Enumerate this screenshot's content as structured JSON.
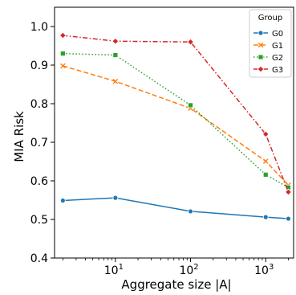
{
  "chart_data": {
    "type": "line",
    "xlabel": "Aggregate size |A|",
    "ylabel": "MIA Risk",
    "xscale": "log",
    "xlim": [
      1.55,
      2350
    ],
    "ylim": [
      0.4,
      1.05
    ],
    "x_ticks": [
      {
        "value": 10,
        "label": "10",
        "exp": "1"
      },
      {
        "value": 100,
        "label": "10",
        "exp": "2"
      },
      {
        "value": 1000,
        "label": "10",
        "exp": "3"
      }
    ],
    "y_ticks": [
      {
        "value": 0.4,
        "label": "0.4"
      },
      {
        "value": 0.5,
        "label": "0.5"
      },
      {
        "value": 0.6,
        "label": "0.6"
      },
      {
        "value": 0.7,
        "label": "0.7"
      },
      {
        "value": 0.8,
        "label": "0.8"
      },
      {
        "value": 0.9,
        "label": "0.9"
      },
      {
        "value": 1.0,
        "label": "1.0"
      }
    ],
    "grid": false,
    "legend": {
      "title": "Group",
      "placement": "top-right"
    },
    "series": [
      {
        "name": "G0",
        "color": "#1f77b4",
        "marker": "circle",
        "dash": "solid",
        "x": [
          2,
          10,
          100,
          1000,
          2000
        ],
        "y": [
          0.549,
          0.556,
          0.521,
          0.506,
          0.502
        ]
      },
      {
        "name": "G1",
        "color": "#ff7f0e",
        "marker": "x",
        "dash": "dashed",
        "x": [
          2,
          10,
          100,
          1000,
          2000
        ],
        "y": [
          0.898,
          0.858,
          0.788,
          0.651,
          0.589
        ]
      },
      {
        "name": "G2",
        "color": "#2ca02c",
        "marker": "square",
        "dash": "dotted",
        "x": [
          2,
          10,
          100,
          1000,
          2000
        ],
        "y": [
          0.93,
          0.926,
          0.796,
          0.616,
          0.583
        ]
      },
      {
        "name": "G3",
        "color": "#d62728",
        "marker": "diamond",
        "dash": "dashdot",
        "x": [
          2,
          10,
          100,
          1000,
          2000
        ],
        "y": [
          0.977,
          0.962,
          0.96,
          0.721,
          0.571
        ]
      }
    ]
  }
}
